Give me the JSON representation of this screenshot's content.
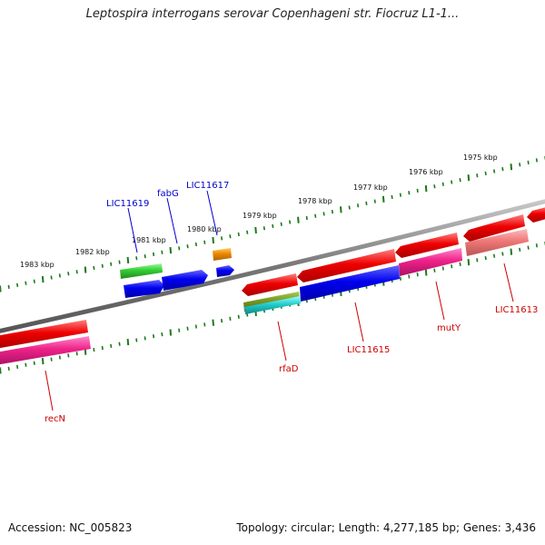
{
  "title": "Leptospira interrogans serovar Copenhageni str. Fiocruz L1-1...",
  "footer": {
    "accession": "Accession: NC_005823",
    "summary": "Topology: circular; Length: 4,277,185 bp; Genes: 3,436"
  },
  "scale_labels": [
    "1983 kbp",
    "1982 kbp",
    "1981 kbp",
    "1980 kbp",
    "1979 kbp",
    "1978 kbp",
    "1977 kbp",
    "1976 kbp",
    "1975 kbp"
  ],
  "gene_labels": {
    "top": [
      "LIC11619",
      "fabG",
      "LIC11617"
    ],
    "bottom": [
      "recN",
      "rfaD",
      "LIC11615",
      "mutY",
      "LIC11613"
    ]
  },
  "colors": {
    "forward_label": "#0000cc",
    "reverse_label": "#cc0000",
    "backbone": "#808080",
    "tick": "#1a7a1a",
    "red": "#ee0000",
    "pink": "#ee2288",
    "blue": "#0000ee",
    "green": "#33cc33",
    "orange": "#ee8800",
    "olive": "#779922",
    "cyan": "#22cccc",
    "light_red": "#ee7777"
  }
}
